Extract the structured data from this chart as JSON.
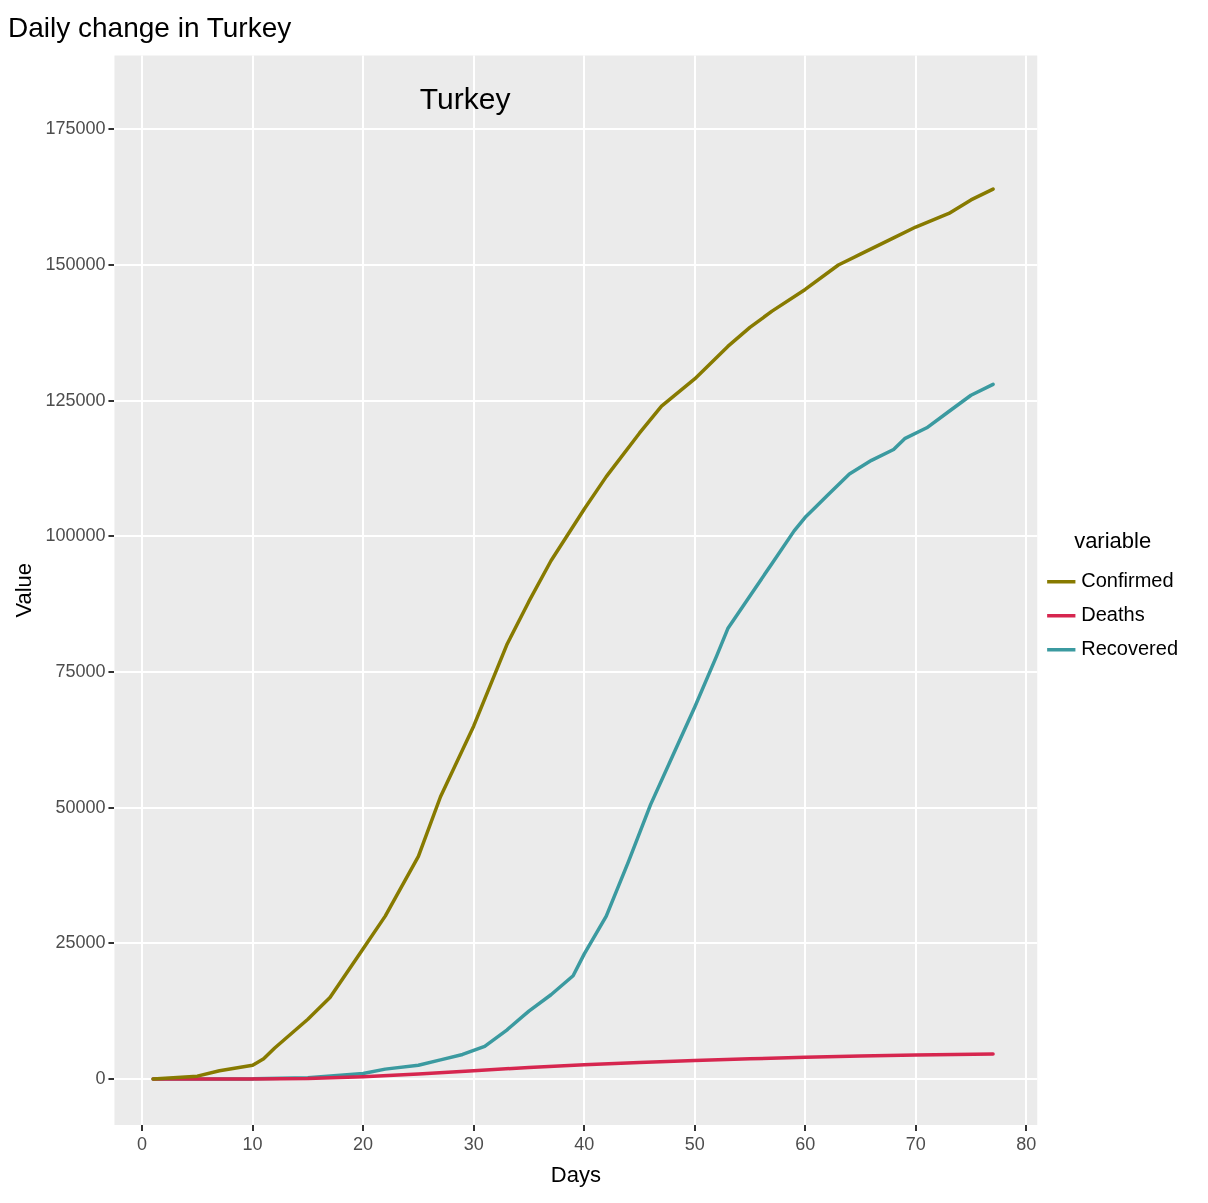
{
  "chart_data": {
    "type": "line",
    "title": "Daily change in Turkey",
    "xlabel": "Days",
    "ylabel": "Value",
    "legend_title": "variable",
    "annotations": [
      "Turkey"
    ],
    "xlim": [
      -2.5,
      81
    ],
    "xticks": [
      0,
      10,
      20,
      30,
      40,
      50,
      60,
      70,
      80
    ],
    "ylim": [
      -8500,
      188600
    ],
    "yticks": [
      0,
      25000,
      50000,
      75000,
      100000,
      125000,
      150000,
      175000
    ],
    "grid": true,
    "legend": "right",
    "marker": "none",
    "line_style": "solid",
    "series": [
      {
        "name": "Confirmed",
        "color": "#877a00",
        "x": [
          1,
          5,
          7,
          10,
          11,
          12,
          15,
          17,
          20,
          22,
          25,
          27,
          30,
          33,
          35,
          37,
          40,
          42,
          45,
          47,
          50,
          53,
          55,
          57,
          60,
          63,
          65,
          68,
          70,
          73,
          75,
          77
        ],
        "values": [
          0,
          500,
          1500,
          2500,
          3700,
          5700,
          11000,
          15000,
          24000,
          30000,
          41000,
          52000,
          65000,
          80000,
          88000,
          95500,
          105000,
          111000,
          119000,
          124000,
          129000,
          135000,
          138500,
          141500,
          145500,
          150000,
          152000,
          155000,
          157000,
          159500,
          162000,
          164000
        ]
      },
      {
        "name": "Deaths",
        "color": "#d6264f",
        "x": [
          1,
          10,
          15,
          20,
          25,
          30,
          35,
          40,
          45,
          50,
          55,
          60,
          65,
          70,
          77
        ],
        "values": [
          0,
          0,
          50,
          400,
          900,
          1500,
          2100,
          2600,
          3000,
          3400,
          3700,
          4000,
          4200,
          4400,
          4600
        ]
      },
      {
        "name": "Recovered",
        "color": "#3b9aa0",
        "x": [
          1,
          10,
          15,
          20,
          22,
          25,
          27,
          29,
          31,
          33,
          35,
          37,
          39,
          40,
          42,
          44,
          46,
          48,
          50,
          52,
          53,
          55,
          57,
          59,
          60,
          62,
          64,
          66,
          68,
          69,
          71,
          73,
          75,
          77
        ],
        "values": [
          0,
          0,
          200,
          1000,
          1800,
          2500,
          3500,
          4500,
          6000,
          9000,
          12500,
          15500,
          19000,
          23000,
          30000,
          40000,
          50500,
          59500,
          68500,
          78000,
          83000,
          89000,
          95000,
          101000,
          103500,
          107500,
          111500,
          114000,
          116000,
          118000,
          120000,
          123000,
          126000,
          128000
        ]
      }
    ]
  }
}
